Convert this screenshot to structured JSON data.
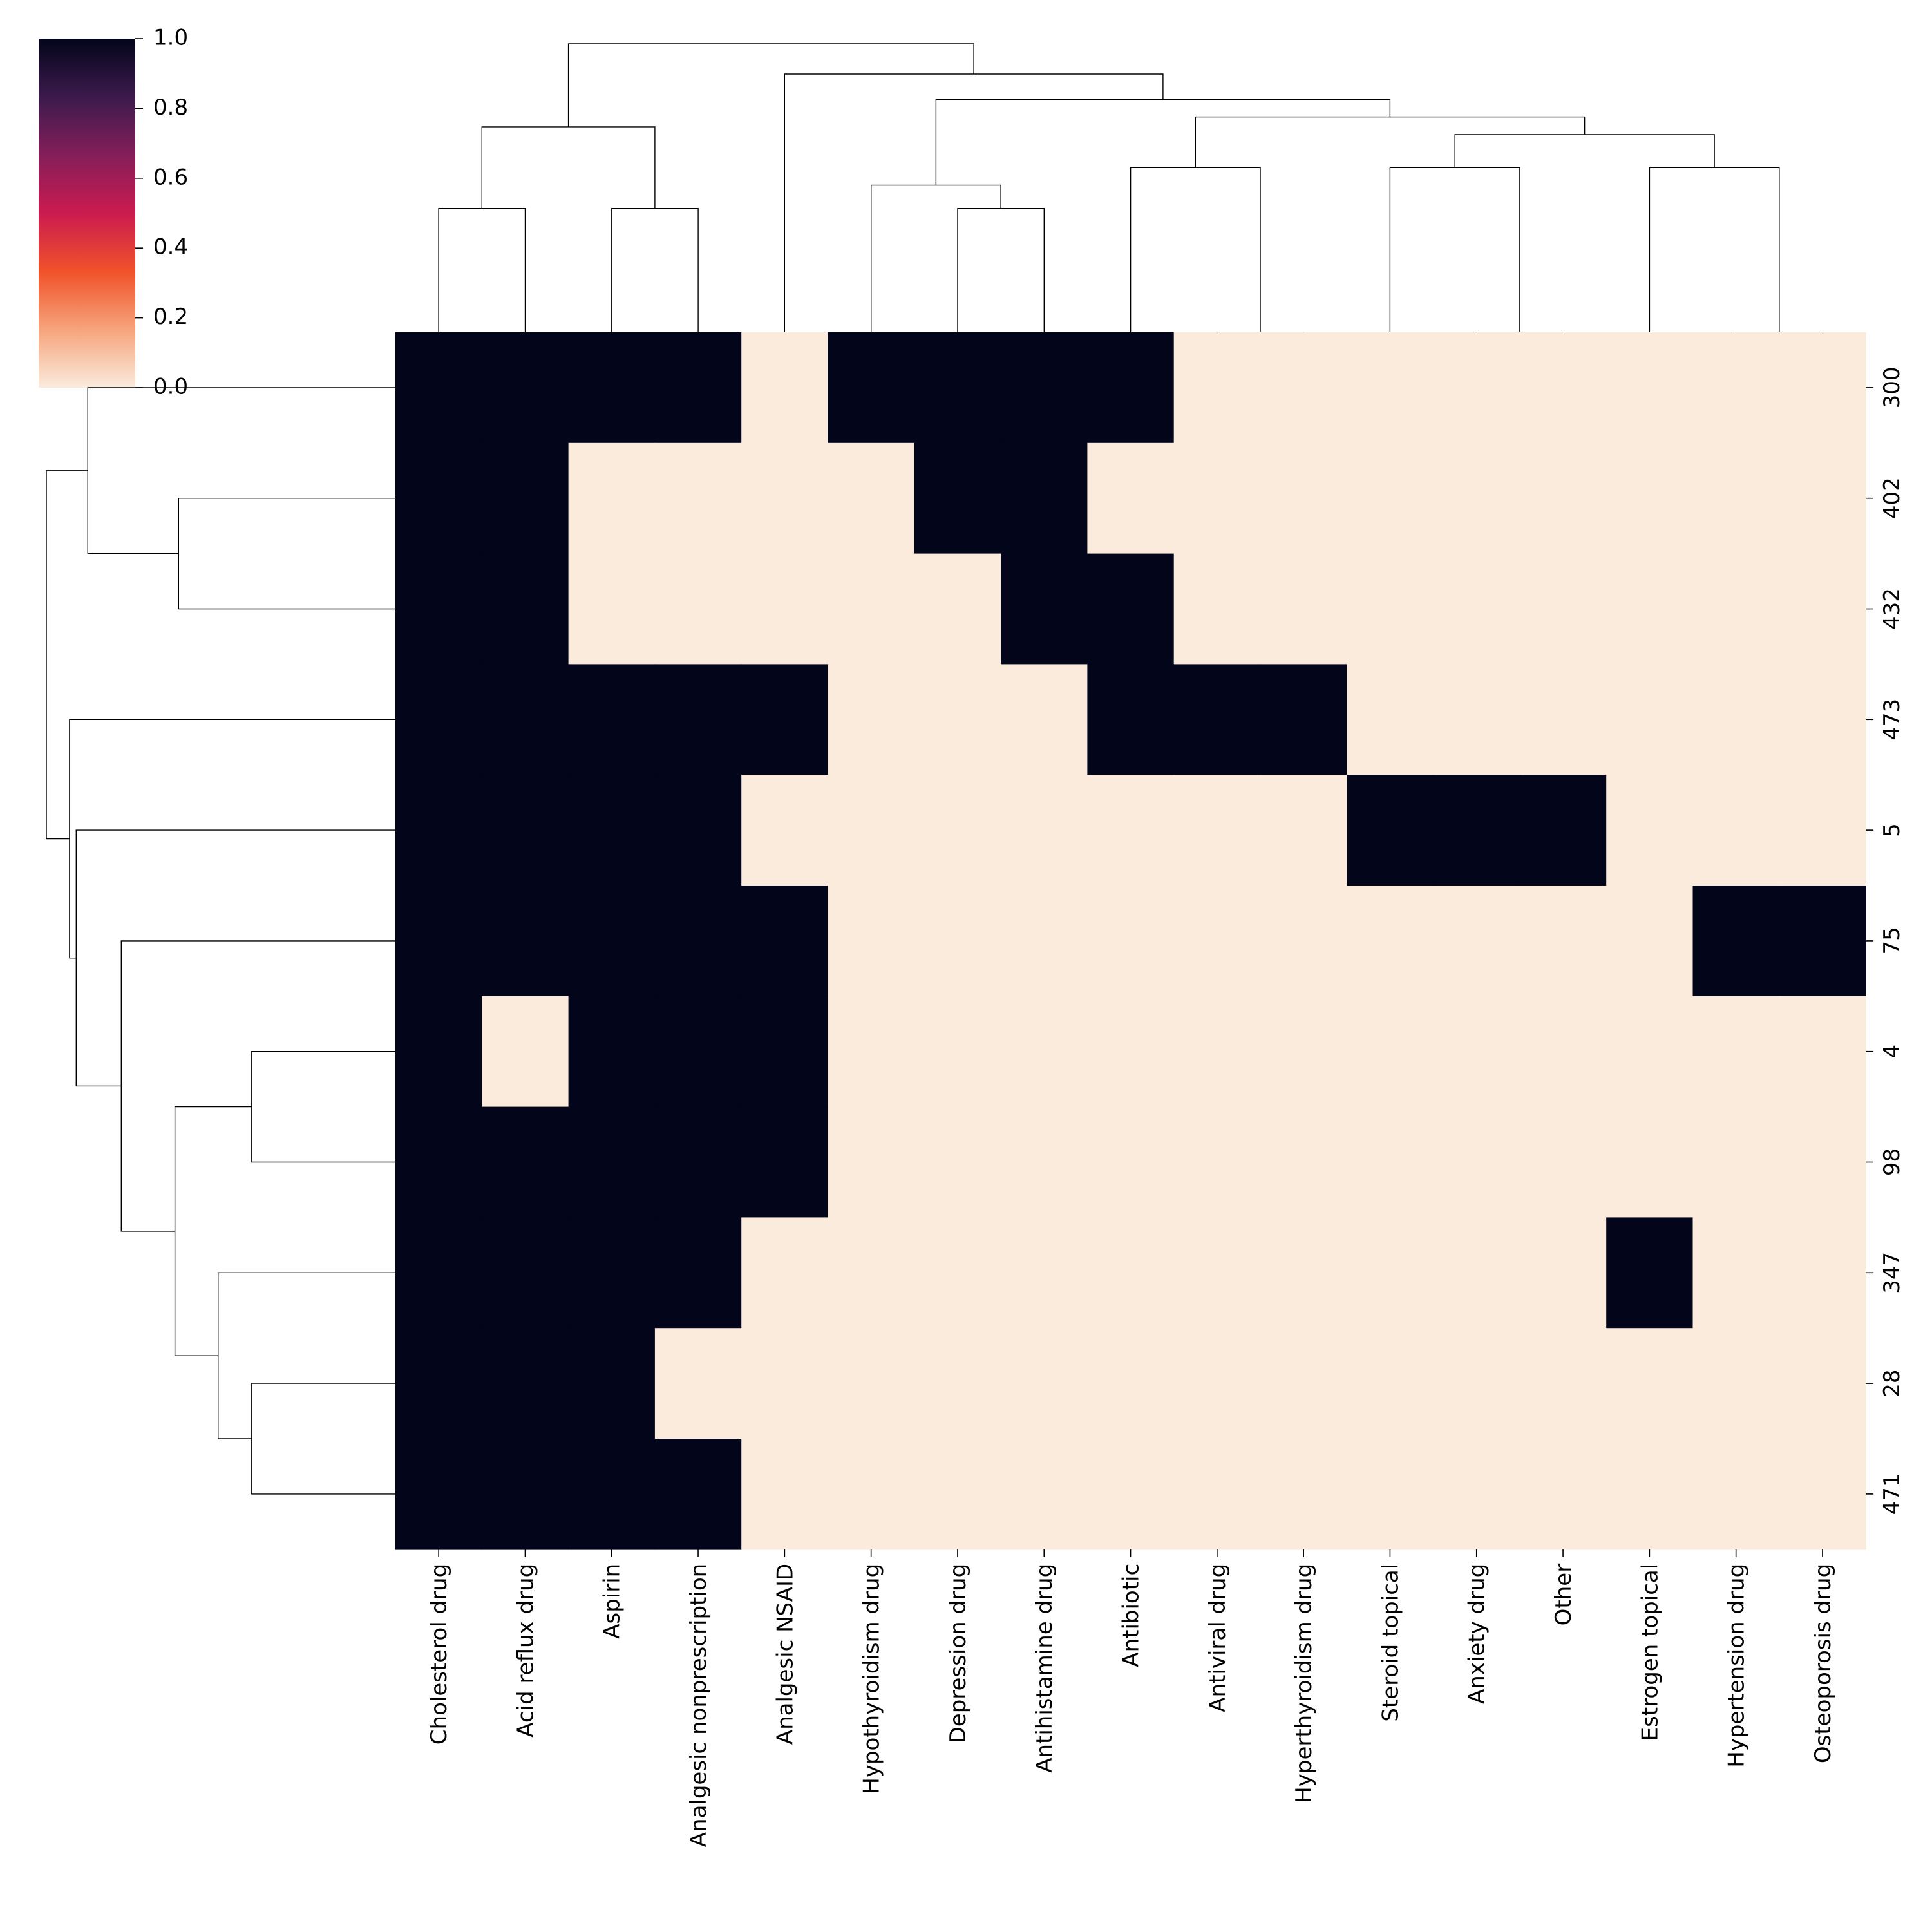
{
  "chart_data": {
    "type": "heatmap",
    "title": "",
    "xlabel": "",
    "ylabel": "",
    "columns": [
      "Cholesterol drug",
      "Acid reflux drug",
      "Aspirin",
      "Analgesic nonprescription",
      "Analgesic NSAID",
      "Hypothyroidism drug",
      "Depression drug",
      "Antihistamine drug",
      "Antibiotic",
      "Antiviral drug",
      "Hyperthyroidism drug",
      "Steroid topical",
      "Anxiety drug",
      "Other",
      "Estrogen topical",
      "Hypertension drug",
      "Osteoporosis drug"
    ],
    "rows": [
      "300",
      "402",
      "432",
      "473",
      "5",
      "75",
      "4",
      "98",
      "347",
      "28",
      "471"
    ],
    "values": [
      [
        1,
        1,
        1,
        1,
        0,
        1,
        1,
        1,
        1,
        0,
        0,
        0,
        0,
        0,
        0,
        0,
        0
      ],
      [
        1,
        1,
        0,
        0,
        0,
        0,
        1,
        1,
        0,
        0,
        0,
        0,
        0,
        0,
        0,
        0,
        0
      ],
      [
        1,
        1,
        0,
        0,
        0,
        0,
        0,
        1,
        1,
        0,
        0,
        0,
        0,
        0,
        0,
        0,
        0
      ],
      [
        1,
        1,
        1,
        1,
        1,
        0,
        0,
        0,
        1,
        1,
        1,
        0,
        0,
        0,
        0,
        0,
        0
      ],
      [
        1,
        1,
        1,
        1,
        0,
        0,
        0,
        0,
        0,
        0,
        0,
        1,
        1,
        1,
        0,
        0,
        0
      ],
      [
        1,
        1,
        1,
        1,
        1,
        0,
        0,
        0,
        0,
        0,
        0,
        0,
        0,
        0,
        0,
        1,
        1
      ],
      [
        1,
        0,
        1,
        1,
        1,
        0,
        0,
        0,
        0,
        0,
        0,
        0,
        0,
        0,
        0,
        0,
        0
      ],
      [
        1,
        1,
        1,
        1,
        1,
        0,
        0,
        0,
        0,
        0,
        0,
        0,
        0,
        0,
        0,
        0,
        0
      ],
      [
        1,
        1,
        1,
        1,
        0,
        0,
        0,
        0,
        0,
        0,
        0,
        0,
        0,
        0,
        1,
        0,
        0
      ],
      [
        1,
        1,
        1,
        0,
        0,
        0,
        0,
        0,
        0,
        0,
        0,
        0,
        0,
        0,
        0,
        0,
        0
      ],
      [
        1,
        1,
        1,
        1,
        0,
        0,
        0,
        0,
        0,
        0,
        0,
        0,
        0,
        0,
        0,
        0,
        0
      ]
    ],
    "colorbar": {
      "range": [
        0,
        1
      ],
      "ticks": [
        0.0,
        0.2,
        0.4,
        0.6,
        0.8,
        1.0
      ],
      "tick_labels": [
        "0.0",
        "0.2",
        "0.4",
        "0.6",
        "0.8",
        "1.0"
      ],
      "colors": [
        "#faebdd",
        "#f6a47c",
        "#f0522a",
        "#cb1b4f",
        "#841e5a",
        "#3c1a4c",
        "#03051a"
      ]
    },
    "cell_colors": {
      "0": "#faebdd",
      "1": "#03051a"
    },
    "col_dendrogram": [
      {
        "a": 0,
        "b": 1,
        "h": 0.176
      },
      {
        "a": 2,
        "b": 3,
        "h": 0.176
      },
      {
        "a": 17,
        "b": 18,
        "h": 0.292
      },
      {
        "a": 6,
        "b": 7,
        "h": 0.176
      },
      {
        "a": 5,
        "b": 20,
        "h": 0.209
      },
      {
        "a": 9,
        "b": 10,
        "h": 0.0
      },
      {
        "a": 12,
        "b": 13,
        "h": 0.0
      },
      {
        "a": 15,
        "b": 16,
        "h": 0.0
      },
      {
        "a": 8,
        "b": 22,
        "h": 0.234
      },
      {
        "a": 11,
        "b": 23,
        "h": 0.234
      },
      {
        "a": 14,
        "b": 24,
        "h": 0.234
      },
      {
        "a": 26,
        "b": 27,
        "h": 0.281
      },
      {
        "a": 25,
        "b": 28,
        "h": 0.306
      },
      {
        "a": 21,
        "b": 29,
        "h": 0.331
      },
      {
        "a": 4,
        "b": 30,
        "h": 0.367
      },
      {
        "a": 19,
        "b": 31,
        "h": 0.41
      }
    ],
    "row_dendrogram": [
      {
        "a": 1,
        "b": 2,
        "h": 0.356
      },
      {
        "a": 0,
        "b": 11,
        "h": 0.505
      },
      {
        "a": 6,
        "b": 7,
        "h": 0.236
      },
      {
        "a": 9,
        "b": 10,
        "h": 0.236
      },
      {
        "a": 8,
        "b": 14,
        "h": 0.291
      },
      {
        "a": 13,
        "b": 15,
        "h": 0.362
      },
      {
        "a": 5,
        "b": 16,
        "h": 0.45
      },
      {
        "a": 4,
        "b": 17,
        "h": 0.524
      },
      {
        "a": 3,
        "b": 18,
        "h": 0.535
      },
      {
        "a": 12,
        "b": 19,
        "h": 0.573
      }
    ]
  }
}
